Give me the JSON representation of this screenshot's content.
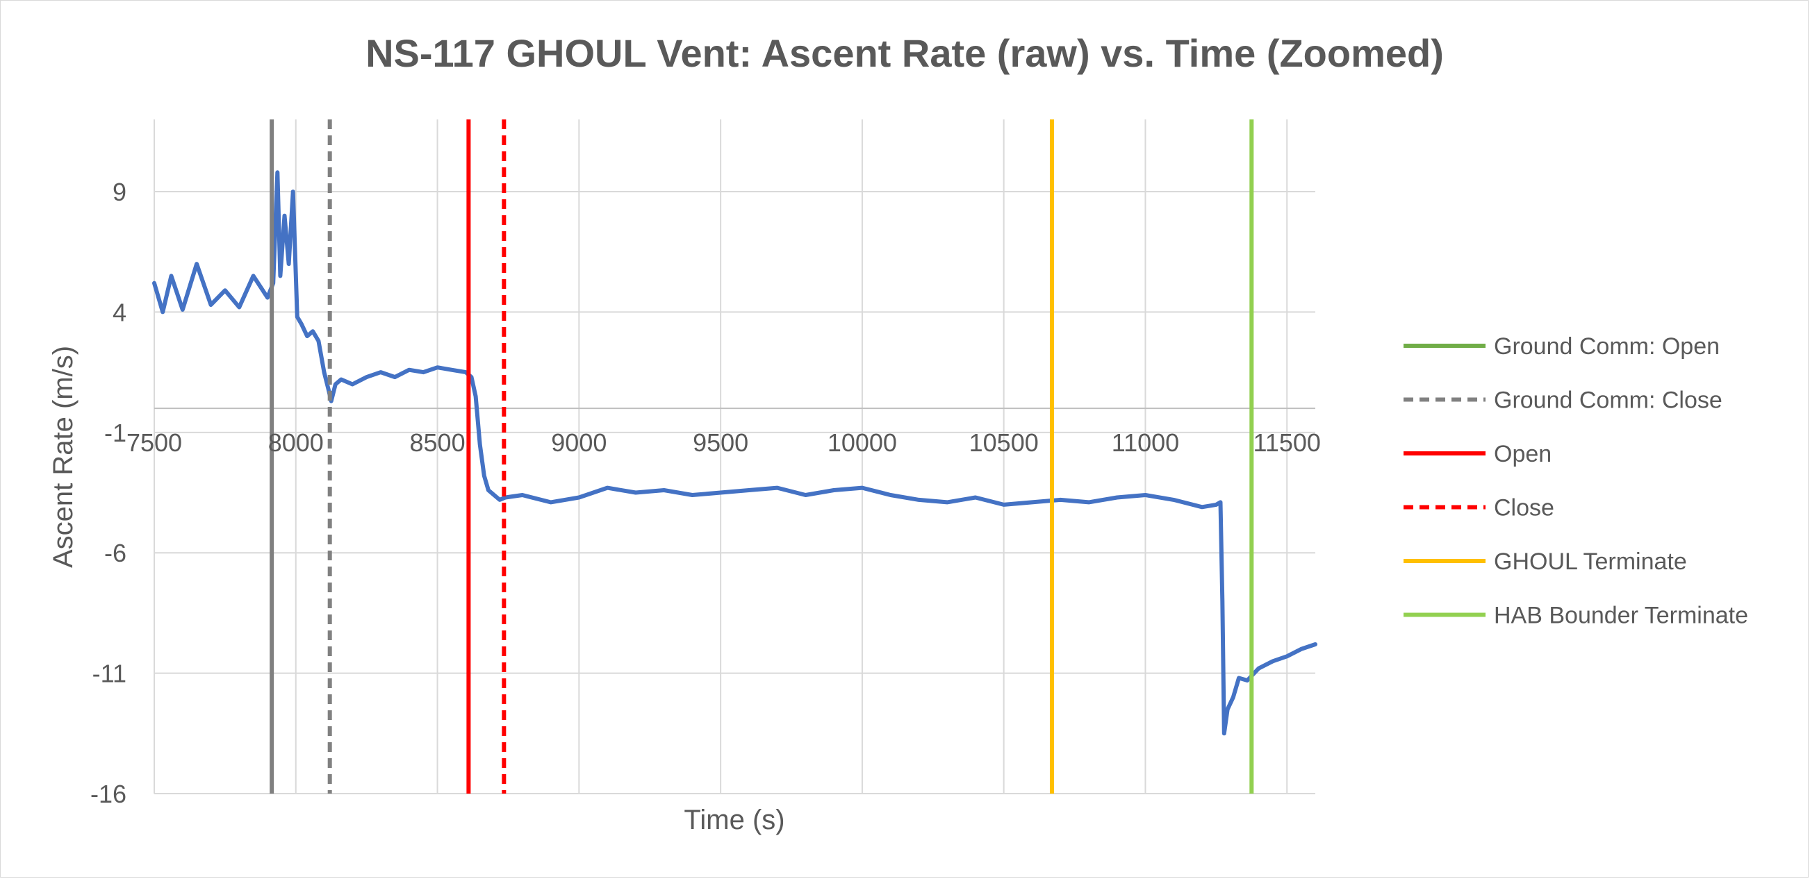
{
  "chart_data": {
    "type": "line",
    "title": "NS-117 GHOUL Vent: Ascent Rate (raw) vs. Time (Zoomed)",
    "xlabel": "Time (s)",
    "ylabel": "Ascent Rate (m/s)",
    "xlim": [
      7500,
      11600
    ],
    "ylim": [
      -16,
      12
    ],
    "x_ticks": [
      7500,
      8000,
      8500,
      9000,
      9500,
      10000,
      10500,
      11000,
      11500
    ],
    "x_tick_labels": [
      "7500",
      "8000",
      "8500",
      "9000",
      "9500",
      "10000",
      "10500",
      "11000",
      "11500"
    ],
    "y_ticks": [
      9,
      4,
      -1,
      -6,
      -11,
      -16
    ],
    "y_tick_labels": [
      "9",
      "4",
      "-1",
      "-6",
      "-11",
      "-16"
    ],
    "x_axis_crosses_at": 0,
    "grid": true,
    "legend_position": "right",
    "series": [
      {
        "color": "#4472c4",
        "x": [
          7500,
          7530,
          7560,
          7600,
          7650,
          7700,
          7750,
          7800,
          7850,
          7900,
          7920,
          7935,
          7945,
          7960,
          7975,
          7990,
          8005,
          8020,
          8040,
          8060,
          8080,
          8100,
          8115,
          8125,
          8140,
          8160,
          8200,
          8250,
          8300,
          8350,
          8400,
          8450,
          8500,
          8550,
          8600,
          8620,
          8635,
          8650,
          8665,
          8680,
          8700,
          8720,
          8740,
          8800,
          8900,
          9000,
          9100,
          9200,
          9300,
          9400,
          9500,
          9600,
          9700,
          9800,
          9900,
          10000,
          10100,
          10200,
          10300,
          10400,
          10500,
          10600,
          10700,
          10800,
          10900,
          11000,
          11100,
          11200,
          11250,
          11265,
          11272,
          11278,
          11290,
          11310,
          11330,
          11360,
          11400,
          11450,
          11500,
          11550,
          11600
        ],
        "y": [
          5.2,
          4.0,
          5.5,
          4.1,
          6.0,
          4.3,
          4.9,
          4.2,
          5.5,
          4.6,
          5.2,
          9.8,
          5.5,
          8.0,
          6.0,
          9.0,
          3.8,
          3.5,
          3.0,
          3.2,
          2.8,
          1.5,
          0.8,
          0.3,
          1.0,
          1.2,
          1.0,
          1.3,
          1.5,
          1.3,
          1.6,
          1.5,
          1.7,
          1.6,
          1.5,
          1.3,
          0.5,
          -1.5,
          -2.8,
          -3.4,
          -3.6,
          -3.8,
          -3.7,
          -3.6,
          -3.9,
          -3.7,
          -3.3,
          -3.5,
          -3.4,
          -3.6,
          -3.5,
          -3.4,
          -3.3,
          -3.6,
          -3.4,
          -3.3,
          -3.6,
          -3.8,
          -3.9,
          -3.7,
          -4.0,
          -3.9,
          -3.8,
          -3.9,
          -3.7,
          -3.6,
          -3.8,
          -4.1,
          -4.0,
          -3.9,
          -8.0,
          -13.5,
          -12.5,
          -12.0,
          -11.2,
          -11.3,
          -10.8,
          -10.5,
          -10.3,
          -10.0,
          -9.8
        ]
      }
    ],
    "markers": [
      {
        "x": 7915,
        "color": "#808080",
        "dash": "solid"
      },
      {
        "x": 8120,
        "color": "#808080",
        "dash": "dashed"
      },
      {
        "x": 8610,
        "color": "#ff0000",
        "dash": "solid"
      },
      {
        "x": 8735,
        "color": "#ff0000",
        "dash": "dashed"
      },
      {
        "x": 10670,
        "color": "#ffc000",
        "dash": "solid"
      },
      {
        "x": 11375,
        "color": "#92d050",
        "dash": "solid"
      }
    ],
    "legend": [
      {
        "label": "Ground Comm: Open",
        "color": "#70ad47",
        "dash": "solid"
      },
      {
        "label": "Ground Comm: Close",
        "color": "#808080",
        "dash": "dashed"
      },
      {
        "label": "Open",
        "color": "#ff0000",
        "dash": "solid"
      },
      {
        "label": "Close",
        "color": "#ff0000",
        "dash": "dashed"
      },
      {
        "label": "GHOUL Terminate",
        "color": "#ffc000",
        "dash": "solid"
      },
      {
        "label": "HAB Bounder Terminate",
        "color": "#92d050",
        "dash": "solid"
      }
    ]
  }
}
